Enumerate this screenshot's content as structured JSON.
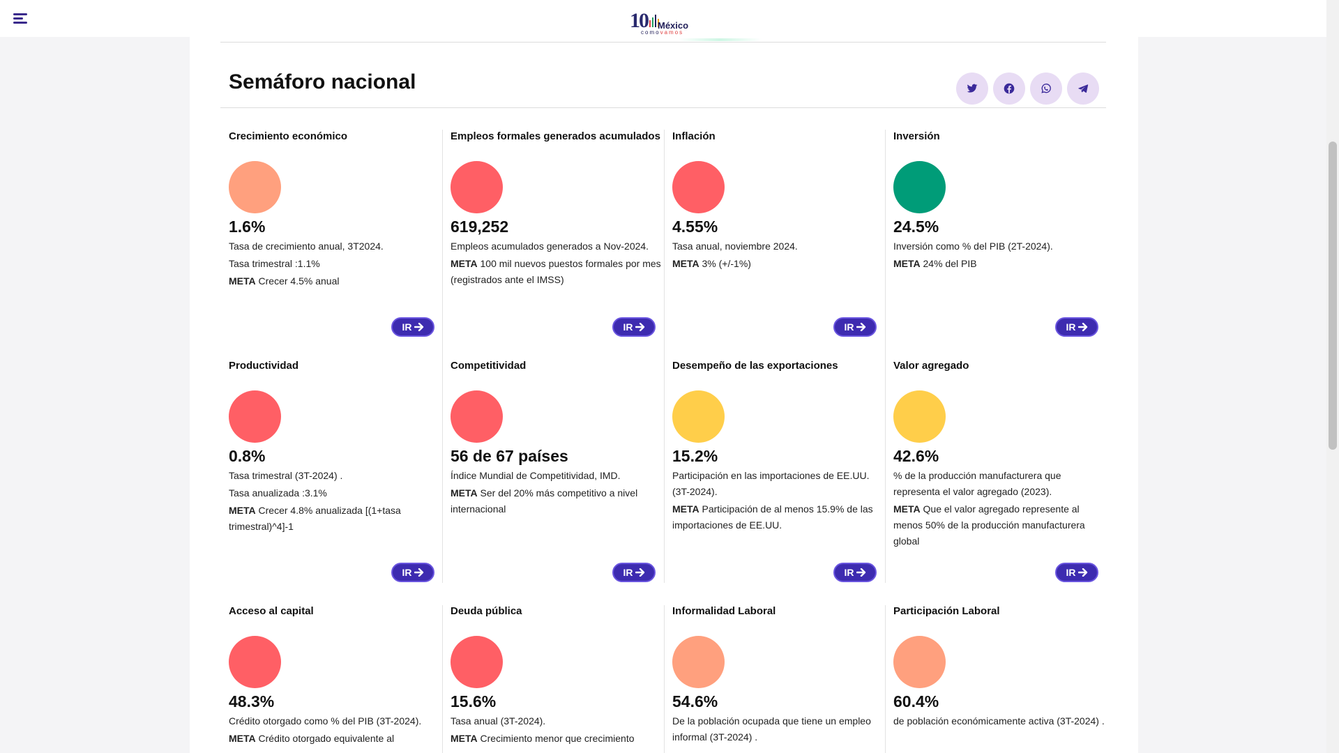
{
  "header": {
    "logo": {
      "ten": "10",
      "mexico": "México",
      "como": "como",
      "vamos": "vamos"
    }
  },
  "section": {
    "title": "Semáforo nacional",
    "share": [
      "twitter-icon",
      "facebook-icon",
      "whatsapp-icon",
      "telegram-icon"
    ]
  },
  "ir_label": "IR",
  "colors": {
    "red": "#ff5f65",
    "salmon": "#ffa07e",
    "green": "#009c78",
    "yellow": "#ffce4a",
    "accent": "#3d2bb0"
  },
  "indicators": [
    {
      "title": "Crecimiento económico",
      "status": "salmon",
      "value": "1.6%",
      "lines": [
        "Tasa de crecimiento anual, 3T2024.",
        "Tasa trimestral :1.1%"
      ],
      "meta_label": "META",
      "meta": " Crecer 4.5% anual"
    },
    {
      "title": "Empleos formales generados acumulados",
      "status": "red",
      "value": "619,252",
      "lines": [
        "Empleos acumulados generados a Nov-2024."
      ],
      "meta_label": "META",
      "meta": " 100 mil nuevos puestos formales por mes (registrados ante el IMSS)"
    },
    {
      "title": "Inflación",
      "status": "red",
      "value": "4.55%",
      "lines": [
        "Tasa anual, noviembre 2024."
      ],
      "meta_label": "META",
      "meta": " 3% (+/-1%)"
    },
    {
      "title": "Inversión",
      "status": "green",
      "value": "24.5%",
      "lines": [
        "Inversión como % del PIB (2T-2024)."
      ],
      "meta_label": "META",
      "meta": " 24% del PIB"
    },
    {
      "title": "Productividad",
      "status": "red",
      "value": "0.8%",
      "lines": [
        "Tasa trimestral (3T-2024) .",
        "Tasa anualizada :3.1%"
      ],
      "meta_label": "META",
      "meta": " Crecer 4.8% anualizada [(1+tasa trimestral)^4]-1"
    },
    {
      "title": "Competitividad",
      "status": "red",
      "value": "56 de 67 países",
      "lines": [
        "Índice Mundial de Competitividad, IMD."
      ],
      "meta_label": "META",
      "meta": " Ser del 20% más competitivo a nivel internacional"
    },
    {
      "title": "Desempeño de las exportaciones",
      "status": "yellow",
      "value": "15.2%",
      "lines": [
        "Participación en las importaciones de EE.UU. (3T-2024)."
      ],
      "meta_label": "META",
      "meta": " Participación de al menos 15.9% de las importaciones de EE.UU."
    },
    {
      "title": "Valor agregado",
      "status": "yellow",
      "value": "42.6%",
      "lines": [
        "% de la producción manufacturera que representa el valor agregado (2023)."
      ],
      "meta_label": "META",
      "meta": " Que el valor agregado represente al menos 50% de la producción manufacturera global"
    },
    {
      "title": "Acceso al capital",
      "status": "red",
      "value": "48.3%",
      "lines": [
        "Crédito otorgado como % del PIB (3T-2024)."
      ],
      "meta_label": "META",
      "meta": " Crédito otorgado equivalente al"
    },
    {
      "title": "Deuda pública",
      "status": "red",
      "value": "15.6%",
      "lines": [
        "Tasa anual (3T-2024)."
      ],
      "meta_label": "META",
      "meta": " Crecimiento menor que crecimiento"
    },
    {
      "title": "Informalidad Laboral",
      "status": "salmon",
      "value": "54.6%",
      "lines": [
        "De la población ocupada que tiene un empleo informal (3T-2024) ."
      ],
      "meta_label": "",
      "meta": ""
    },
    {
      "title": "Participación Laboral",
      "status": "salmon",
      "value": "60.4%",
      "lines": [
        "de población económicamente activa (3T-2024) ."
      ],
      "meta_label": "",
      "meta": ""
    }
  ]
}
